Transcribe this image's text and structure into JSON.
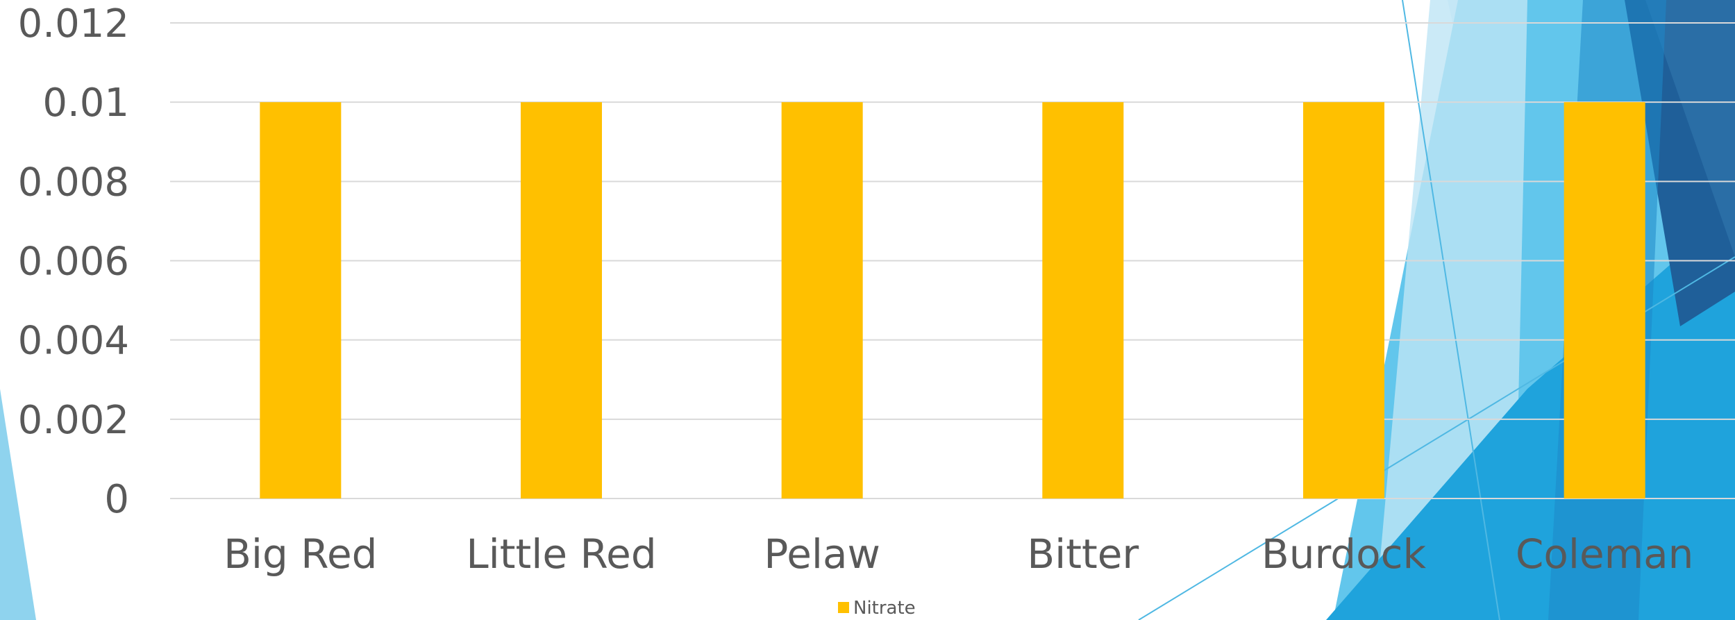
{
  "chart_data": {
    "type": "bar",
    "categories": [
      "Big Red",
      "Little Red",
      "Pelaw",
      "Bitter",
      "Burdock",
      "Coleman"
    ],
    "series": [
      {
        "name": "Nitrate",
        "values": [
          0.01,
          0.01,
          0.01,
          0.01,
          0.01,
          0.01
        ],
        "color": "#FFC000"
      }
    ],
    "y_ticks": [
      "0",
      "0.002",
      "0.004",
      "0.006",
      "0.008",
      "0.01",
      "0.012"
    ],
    "ylim": [
      0,
      0.012
    ],
    "grid": true,
    "legend": {
      "position": "bottom"
    },
    "colors": {
      "bar": "#FFC000",
      "grid": "#D9D9D9",
      "axis_text": "#595959",
      "decor_dark": "#1F5F99",
      "decor_mid": "#1FA3DC",
      "decor_light": "#BEE5F5"
    }
  }
}
